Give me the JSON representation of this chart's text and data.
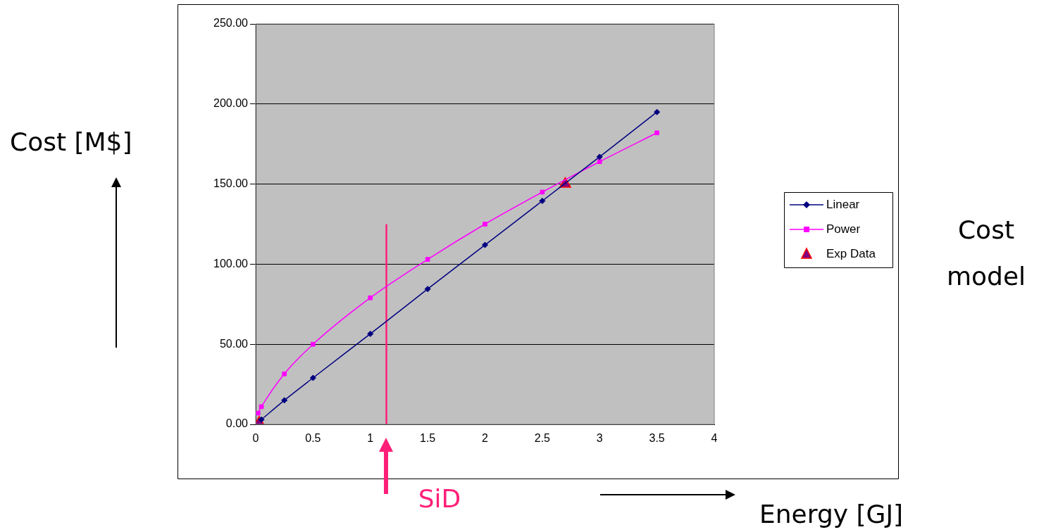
{
  "chart_data": {
    "type": "line",
    "xlabel": "Energy [GJ]",
    "ylabel": "Cost [M$]",
    "xlim": [
      0,
      4
    ],
    "xticks": [
      0,
      0.5,
      1,
      1.5,
      2,
      2.5,
      3,
      3.5,
      4
    ],
    "ylim": [
      0,
      250
    ],
    "yticks": [
      {
        "value": 0,
        "label": "0.00"
      },
      {
        "value": 50,
        "label": "50.00"
      },
      {
        "value": 100,
        "label": "100.00"
      },
      {
        "value": 150,
        "label": "150.00"
      },
      {
        "value": 200,
        "label": "200.00"
      },
      {
        "value": 250,
        "label": "250.00"
      }
    ],
    "grid": "y",
    "legend": "right",
    "series": [
      {
        "name": "Linear",
        "type": "line",
        "color": "#000080",
        "marker": "diamond",
        "x": [
          0.05,
          0.25,
          0.5,
          1,
          1.5,
          2,
          2.5,
          3,
          3.5
        ],
        "values": [
          3,
          15,
          29,
          56.5,
          84.5,
          112,
          139.5,
          167,
          195
        ]
      },
      {
        "name": "Power",
        "type": "line",
        "color": "#ff00ff",
        "marker": "square",
        "x": [
          0.02,
          0.05,
          0.25,
          0.5,
          1,
          1.5,
          2,
          2.5,
          3,
          3.5
        ],
        "values": [
          7,
          11,
          31.5,
          50,
          79,
          103,
          125,
          145,
          164,
          182
        ]
      },
      {
        "name": "Exp Data",
        "type": "scatter",
        "color": "#800080",
        "marker": "triangle",
        "x": [
          0.03,
          2.7
        ],
        "values": [
          1,
          150
        ]
      },
      {
        "type": "line",
        "color": "#ff1f78",
        "marker": "none",
        "x": [
          1.14,
          1.14
        ],
        "values": [
          0,
          125
        ]
      }
    ],
    "annotations": [
      "SiD",
      "Cost model"
    ]
  }
}
